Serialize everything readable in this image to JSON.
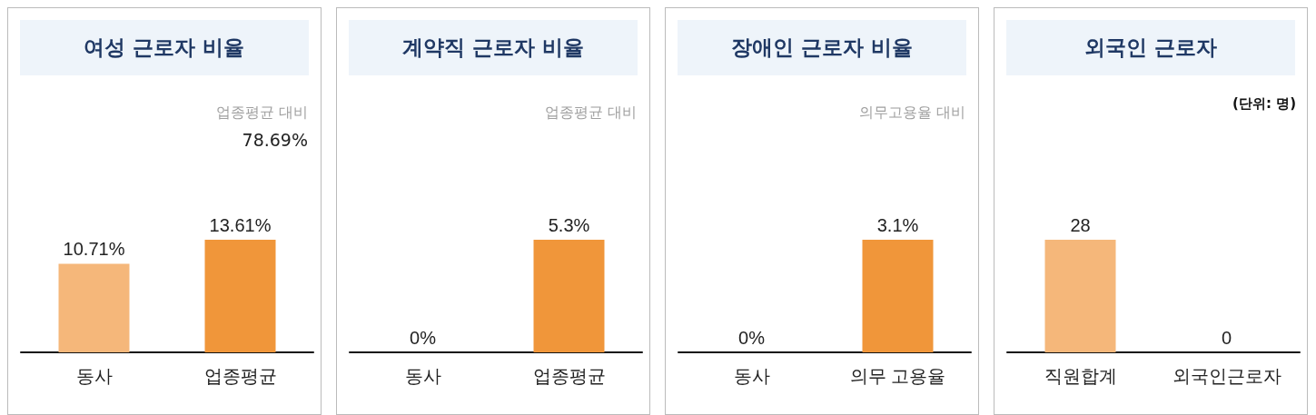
{
  "chart_data": [
    {
      "type": "bar",
      "title": "여성 근로자 비율",
      "categories": [
        "동사",
        "업종평균"
      ],
      "values": [
        10.71,
        13.61
      ],
      "colors": [
        "#f5b77a",
        "#f0963a"
      ],
      "value_labels": [
        "10.71%",
        "13.61%"
      ],
      "annotations": [
        "업종평균 대비",
        "78.69%"
      ]
    },
    {
      "type": "bar",
      "title": "계약직 근로자 비율",
      "categories": [
        "동사",
        "업종평균"
      ],
      "values": [
        0,
        5.3
      ],
      "colors": [
        "#f5b77a",
        "#f0963a"
      ],
      "value_labels": [
        "0%",
        "5.3%"
      ],
      "annotations": [
        "업종평균 대비"
      ]
    },
    {
      "type": "bar",
      "title": "장애인 근로자 비율",
      "categories": [
        "동사",
        "의무 고용율"
      ],
      "values": [
        0,
        3.1
      ],
      "colors": [
        "#f5b77a",
        "#f0963a"
      ],
      "value_labels": [
        "0%",
        "3.1%"
      ],
      "annotations": [
        "의무고용율 대비"
      ]
    },
    {
      "type": "bar",
      "title": "외국인 근로자",
      "subtitle": "(단위: 명)",
      "categories": [
        "직원합계",
        "외국인근로자"
      ],
      "values": [
        28,
        0
      ],
      "colors": [
        "#f5b77a",
        "#f0963a"
      ],
      "value_labels": [
        "28",
        "0"
      ]
    }
  ]
}
